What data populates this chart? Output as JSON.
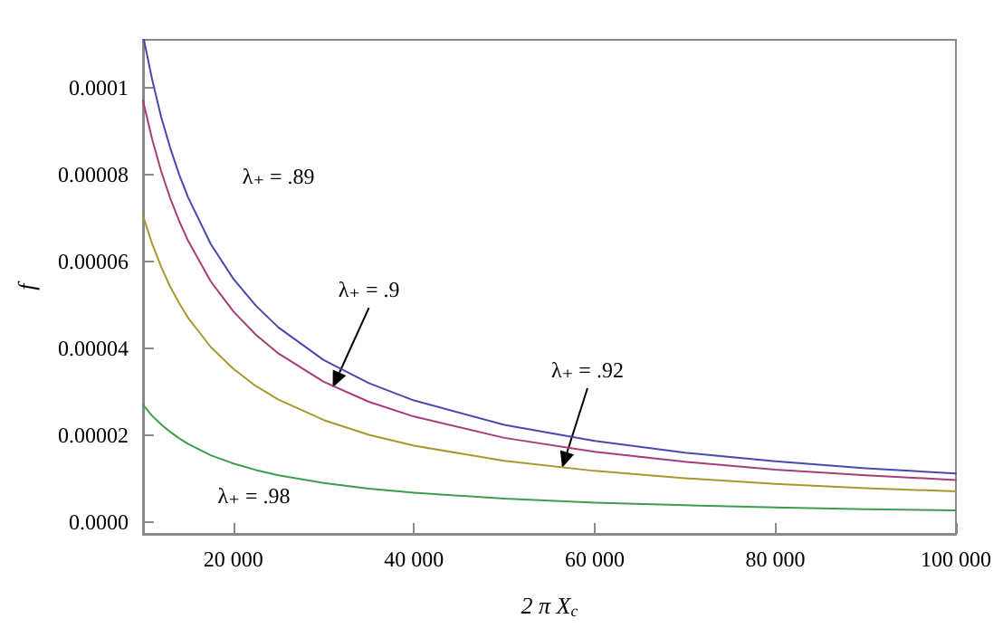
{
  "chart_data": {
    "type": "line",
    "xlabel": "2 π X$_{c}$",
    "ylabel": "f",
    "xlim": [
      10000,
      100000
    ],
    "xticks": [
      {
        "value": 20000,
        "label": "20 000"
      },
      {
        "value": 40000,
        "label": "40 000"
      },
      {
        "value": 60000,
        "label": "60 000"
      },
      {
        "value": 80000,
        "label": "80 000"
      },
      {
        "value": 100000,
        "label": "100 000"
      }
    ],
    "ylim": [
      -2.7e-06,
      0.000111
    ],
    "yticks": [
      {
        "value": 0,
        "label": "0.0000"
      },
      {
        "value": 2e-05,
        "label": "0.00002"
      },
      {
        "value": 4e-05,
        "label": "0.00004"
      },
      {
        "value": 6e-05,
        "label": "0.00006"
      },
      {
        "value": 8e-05,
        "label": "0.00008"
      },
      {
        "value": 0.0001,
        "label": "0.0001"
      }
    ],
    "grid": false,
    "marker": "none",
    "line_style": "solid",
    "x": [
      10000,
      11000,
      12000,
      13000,
      14000,
      15000,
      17500,
      20000,
      22500,
      25000,
      30000,
      35000,
      40000,
      50000,
      60000,
      70000,
      80000,
      90000,
      100000
    ],
    "series": [
      {
        "color": "#4848b0",
        "x": [
          10100,
          11000,
          12000,
          13000,
          14000,
          15000,
          17500,
          20000,
          22500,
          25000,
          30000,
          35000,
          40000,
          50000,
          60000,
          70000,
          80000,
          90000,
          100000
        ],
        "values": [
          0.000111,
          0.000102,
          9.33e-05,
          8.62e-05,
          8e-05,
          7.47e-05,
          6.4e-05,
          5.6e-05,
          4.98e-05,
          4.48e-05,
          3.73e-05,
          3.2e-05,
          2.8e-05,
          2.24e-05,
          1.87e-05,
          1.6e-05,
          1.4e-05,
          1.24e-05,
          1.12e-05
        ]
      },
      {
        "color": "#a83c78",
        "values": [
          9.7e-05,
          8.82e-05,
          8.08e-05,
          7.46e-05,
          6.93e-05,
          6.47e-05,
          5.54e-05,
          4.85e-05,
          4.31e-05,
          3.88e-05,
          3.23e-05,
          2.77e-05,
          2.43e-05,
          1.94e-05,
          1.62e-05,
          1.39e-05,
          1.21e-05,
          1.08e-05,
          9.7e-06
        ]
      },
      {
        "color": "#a8982c",
        "values": [
          7.05e-05,
          6.41e-05,
          5.88e-05,
          5.42e-05,
          5.04e-05,
          4.7e-05,
          4.03e-05,
          3.53e-05,
          3.13e-05,
          2.82e-05,
          2.35e-05,
          2.01e-05,
          1.76e-05,
          1.41e-05,
          1.18e-05,
          1.01e-05,
          8.8e-06,
          7.8e-06,
          7.1e-06
        ]
      },
      {
        "color": "#3c9e4c",
        "values": [
          2.7e-05,
          2.45e-05,
          2.25e-05,
          2.08e-05,
          1.93e-05,
          1.8e-05,
          1.54e-05,
          1.35e-05,
          1.2e-05,
          1.08e-05,
          9e-06,
          7.7e-06,
          6.8e-06,
          5.4e-06,
          4.5e-06,
          3.9e-06,
          3.4e-06,
          3e-06,
          2.7e-06
        ]
      }
    ],
    "annotations": [
      "λ₊ = .89",
      {
        "text": "λ₊ = .9",
        "x": 31000,
        "y": 3.1e-05
      },
      {
        "text": "λ₊ = .92",
        "x": 56400,
        "y": 1.25e-05
      },
      "λ₊ = .98"
    ]
  }
}
